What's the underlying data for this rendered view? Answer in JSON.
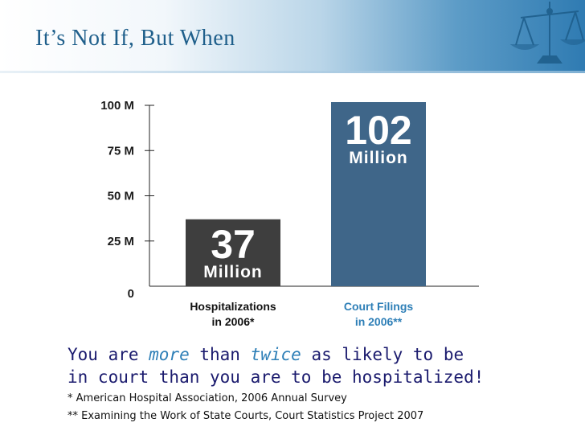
{
  "slide": {
    "title": "It’s Not If, But When"
  },
  "chart_data": {
    "type": "bar",
    "title": "",
    "xlabel": "",
    "ylabel": "",
    "ylim": [
      0,
      100
    ],
    "yticks": [
      0,
      25,
      50,
      75,
      100
    ],
    "ytick_labels": [
      "0",
      "25 M",
      "50 M",
      "75 M",
      "100 M"
    ],
    "categories": [
      "Hospitalizations in 2006*",
      "Court Filings in 2006**"
    ],
    "category_lines": [
      [
        "Hospitalizations",
        "in 2006*"
      ],
      [
        "Court Filings",
        "in 2006**"
      ]
    ],
    "values": [
      37,
      102
    ],
    "value_labels": [
      "37",
      "102"
    ],
    "value_unit": "Million",
    "colors": [
      "#3e3e3e",
      "#3f6689"
    ],
    "category_label_colors": [
      "#111111",
      "#2e7fb7"
    ]
  },
  "headline": {
    "part1": "You are ",
    "more": "more",
    "part2": " than ",
    "twice": "twice",
    "part3": " as likely to be",
    "line2": "in court than you are to be hospitalized!"
  },
  "footnotes": [
    "* American Hospital Association, 2006 Annual Survey",
    "** Examining the Work of State Courts, Court Statistics Project 2007"
  ]
}
